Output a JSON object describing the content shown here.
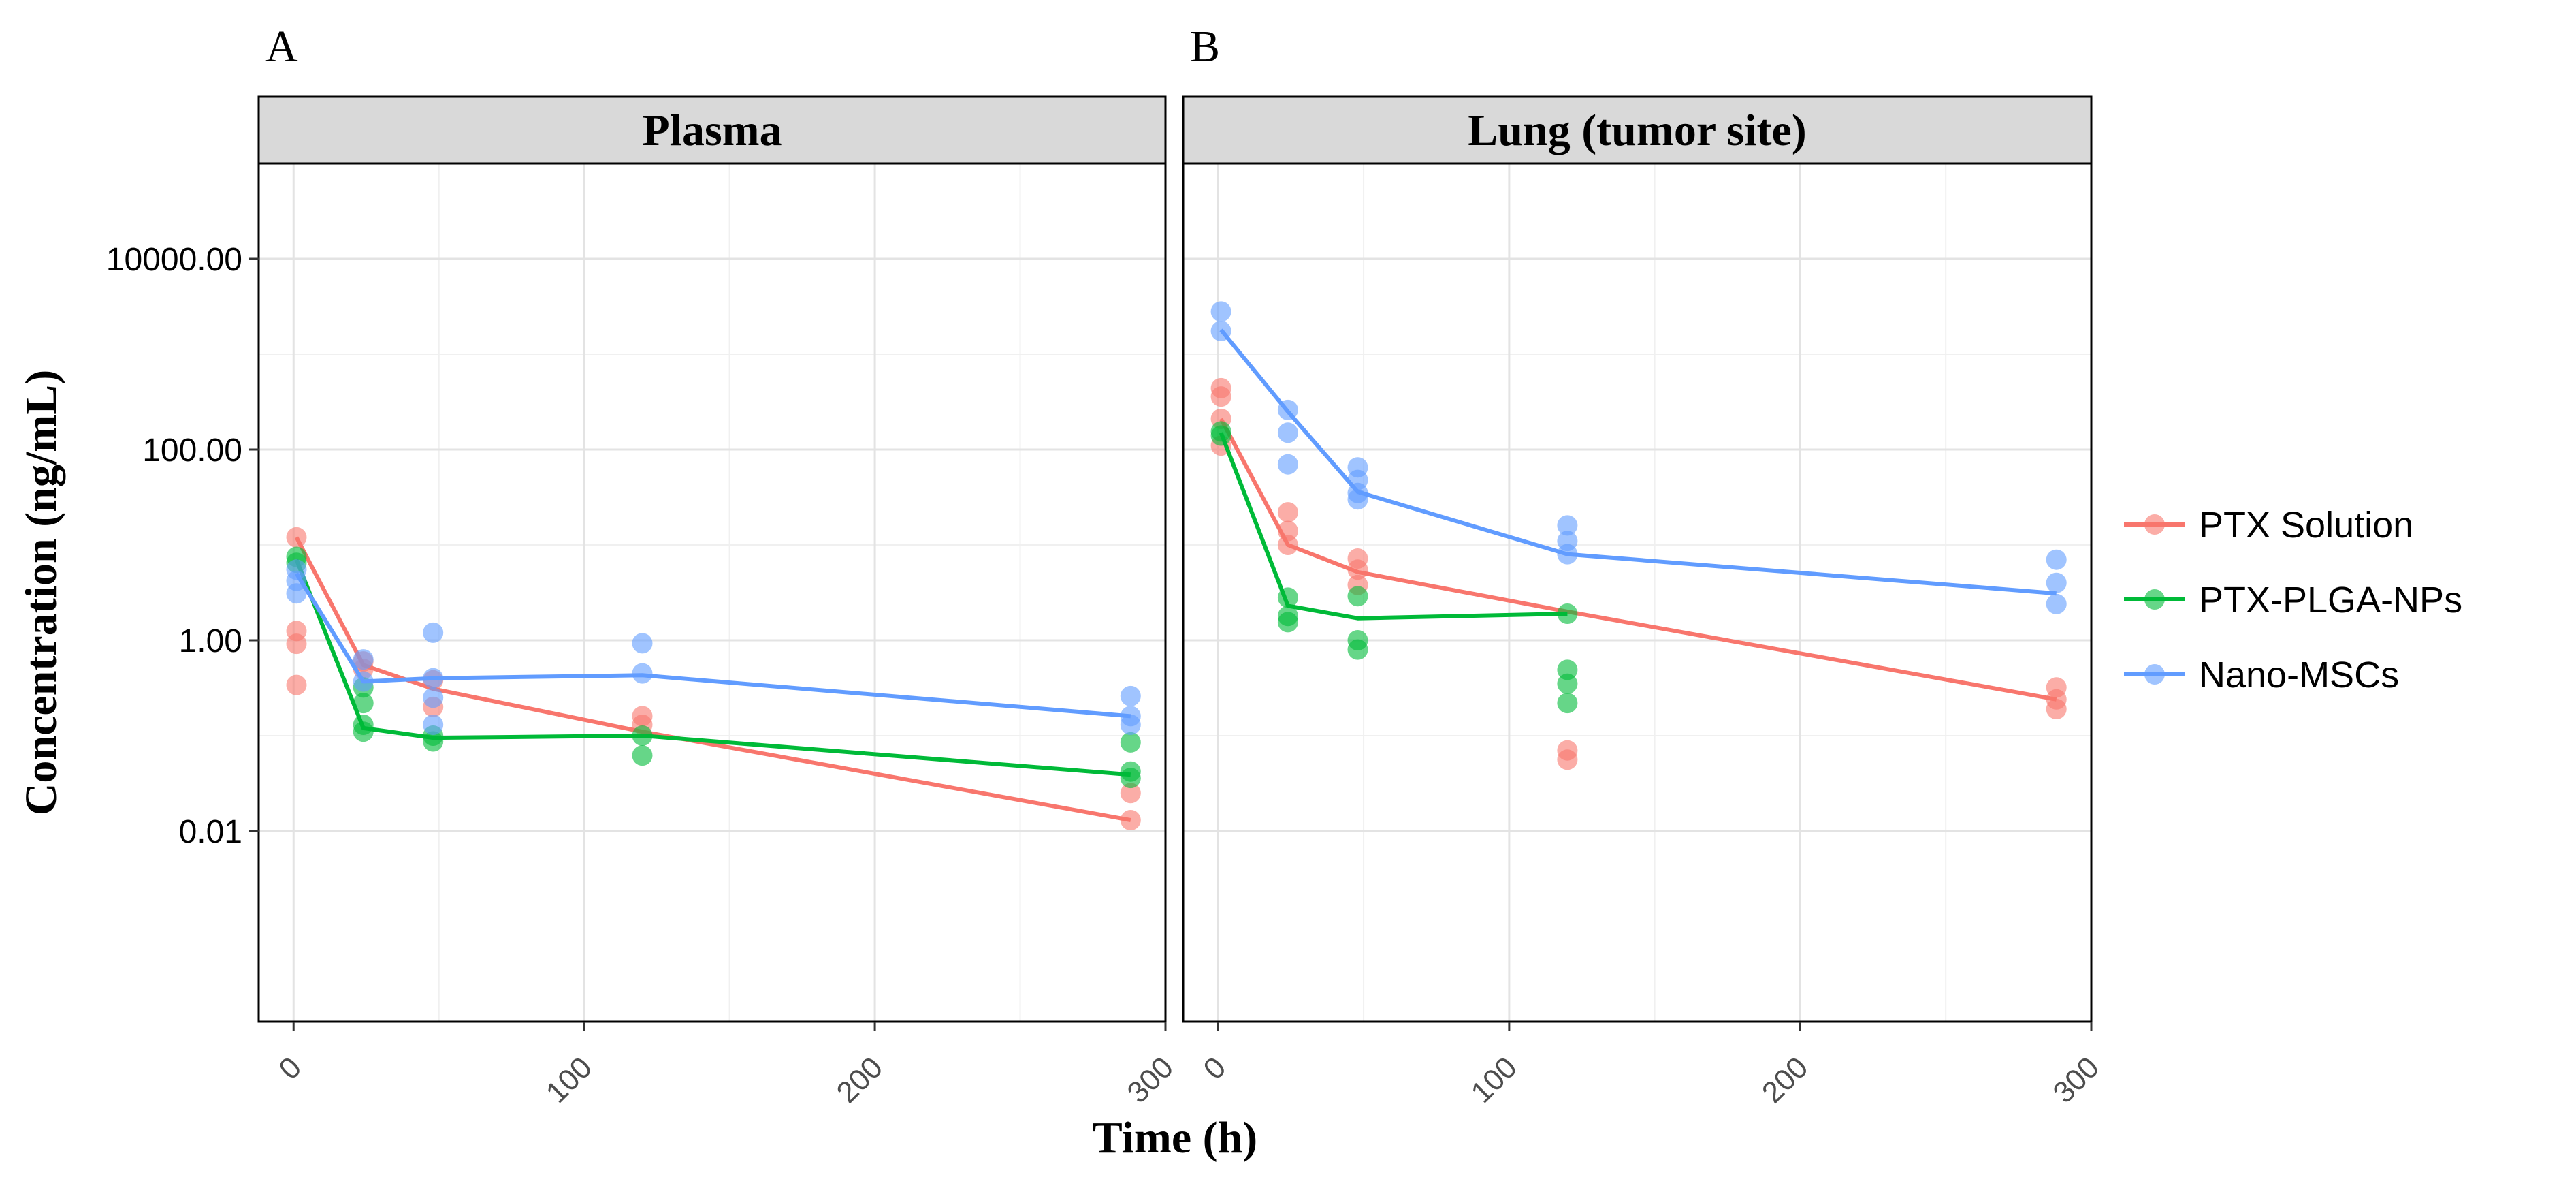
{
  "chart_data": {
    "type": "scatter",
    "y_scale": "log10",
    "ylabel": "Concentration (ng/mL)",
    "xlabel": "Time (h)",
    "ylim": [
      0.0001,
      100000
    ],
    "xlim": [
      -12,
      300
    ],
    "y_ticks": [
      0.01,
      1,
      100,
      10000
    ],
    "y_tick_labels": [
      "0.01",
      "1.00",
      "100.00",
      "10000.00"
    ],
    "x_ticks": [
      0,
      100,
      200,
      300
    ],
    "x_tick_labels": [
      "0",
      "100",
      "200",
      "300"
    ],
    "grid": true,
    "legend_position": "right",
    "legend": [
      {
        "name": "PTX Solution",
        "color": "#F8766D"
      },
      {
        "name": "PTX-PLGA-NPs",
        "color": "#00BA38"
      },
      {
        "name": "Nano-MSCs",
        "color": "#619CFF"
      }
    ],
    "panels": [
      {
        "letter": "A",
        "strip": "Plasma",
        "series": [
          {
            "name": "PTX Solution",
            "color": "#F8766D",
            "line": [
              [
                1,
                12
              ],
              [
                24,
                0.55
              ],
              [
                48,
                0.31
              ],
              [
                120,
                0.11
              ],
              [
                288,
                0.013
              ]
            ],
            "points": [
              [
                1,
                12
              ],
              [
                1,
                1.25
              ],
              [
                1,
                0.92
              ],
              [
                1,
                0.34
              ],
              [
                24,
                0.6
              ],
              [
                24,
                0.5
              ],
              [
                48,
                0.38
              ],
              [
                48,
                0.2
              ],
              [
                120,
                0.16
              ],
              [
                120,
                0.13
              ],
              [
                288,
                0.025
              ],
              [
                288,
                0.013
              ]
            ]
          },
          {
            "name": "PTX-PLGA-NPs",
            "color": "#00BA38",
            "line": [
              [
                1,
                7
              ],
              [
                24,
                0.12
              ],
              [
                48,
                0.095
              ],
              [
                120,
                0.1
              ],
              [
                288,
                0.039
              ]
            ],
            "points": [
              [
                1,
                7.5
              ],
              [
                1,
                6.5
              ],
              [
                24,
                0.32
              ],
              [
                24,
                0.22
              ],
              [
                24,
                0.13
              ],
              [
                24,
                0.11
              ],
              [
                48,
                0.1
              ],
              [
                48,
                0.087
              ],
              [
                120,
                0.1
              ],
              [
                120,
                0.062
              ],
              [
                288,
                0.085
              ],
              [
                288,
                0.042
              ],
              [
                288,
                0.036
              ]
            ]
          },
          {
            "name": "Nano-MSCs",
            "color": "#619CFF",
            "line": [
              [
                1,
                5
              ],
              [
                24,
                0.37
              ],
              [
                48,
                0.4
              ],
              [
                120,
                0.43
              ],
              [
                288,
                0.16
              ]
            ],
            "points": [
              [
                1,
                5.5
              ],
              [
                1,
                4.2
              ],
              [
                1,
                3.1
              ],
              [
                24,
                0.63
              ],
              [
                24,
                0.37
              ],
              [
                48,
                1.2
              ],
              [
                48,
                0.4
              ],
              [
                48,
                0.25
              ],
              [
                48,
                0.13
              ],
              [
                120,
                0.93
              ],
              [
                120,
                0.45
              ],
              [
                288,
                0.26
              ],
              [
                288,
                0.16
              ],
              [
                288,
                0.13
              ]
            ]
          }
        ]
      },
      {
        "letter": "B",
        "strip": "Lung (tumor site)",
        "series": [
          {
            "name": "PTX Solution",
            "color": "#F8766D",
            "line": [
              [
                1,
                210
              ],
              [
                24,
                10
              ],
              [
                48,
                5.2
              ],
              [
                120,
                2
              ],
              [
                288,
                0.24
              ]
            ],
            "points": [
              [
                1,
                440
              ],
              [
                1,
                360
              ],
              [
                1,
                210
              ],
              [
                1,
                110
              ],
              [
                24,
                22
              ],
              [
                24,
                14
              ],
              [
                24,
                10
              ],
              [
                48,
                7.2
              ],
              [
                48,
                5.5
              ],
              [
                48,
                3.8
              ],
              [
                120,
                0.07
              ],
              [
                120,
                0.056
              ],
              [
                288,
                0.32
              ],
              [
                288,
                0.24
              ],
              [
                288,
                0.19
              ]
            ]
          },
          {
            "name": "PTX-PLGA-NPs",
            "color": "#00BA38",
            "line": [
              [
                1,
                150
              ],
              [
                24,
                2.3
              ],
              [
                48,
                1.7
              ],
              [
                120,
                1.9
              ]
            ],
            "points": [
              [
                1,
                155
              ],
              [
                1,
                140
              ],
              [
                24,
                2.8
              ],
              [
                24,
                1.8
              ],
              [
                24,
                1.55
              ],
              [
                48,
                2.9
              ],
              [
                48,
                1.0
              ],
              [
                48,
                0.8
              ],
              [
                120,
                1.9
              ],
              [
                120,
                0.49
              ],
              [
                120,
                0.35
              ],
              [
                120,
                0.22
              ]
            ]
          },
          {
            "name": "Nano-MSCs",
            "color": "#619CFF",
            "line": [
              [
                1,
                1800
              ],
              [
                24,
                250
              ],
              [
                48,
                36
              ],
              [
                120,
                8
              ],
              [
                288,
                3.1
              ]
            ],
            "points": [
              [
                1,
                2800
              ],
              [
                1,
                1750
              ],
              [
                24,
                260
              ],
              [
                24,
                150
              ],
              [
                24,
                70
              ],
              [
                48,
                65
              ],
              [
                48,
                48
              ],
              [
                48,
                35
              ],
              [
                48,
                30
              ],
              [
                120,
                16
              ],
              [
                120,
                11
              ],
              [
                120,
                8
              ],
              [
                288,
                7
              ],
              [
                288,
                4
              ],
              [
                288,
                2.4
              ]
            ]
          }
        ]
      }
    ]
  }
}
